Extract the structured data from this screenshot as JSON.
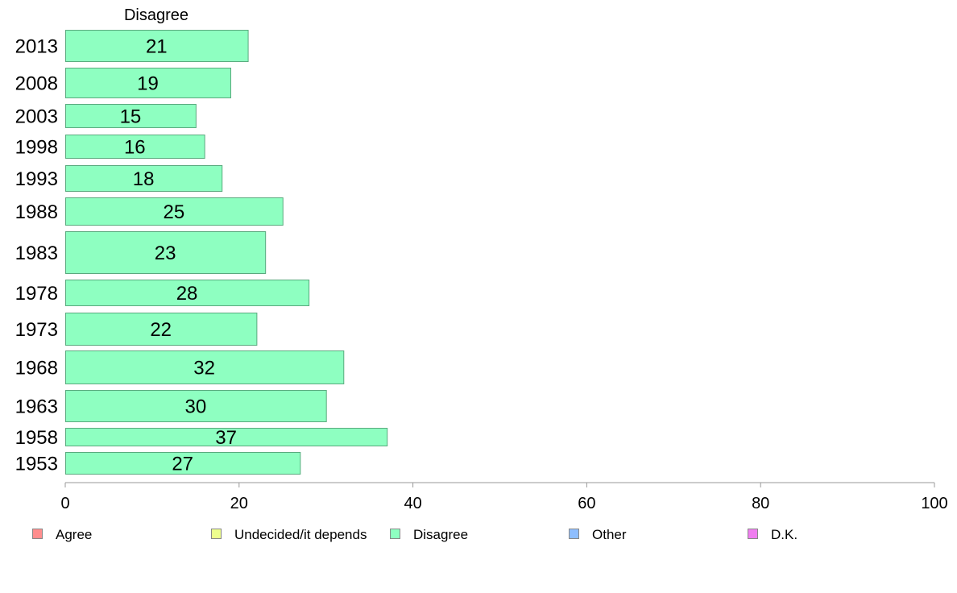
{
  "chart_data": {
    "type": "bar",
    "orientation": "horizontal",
    "panel_title": "Disagree",
    "categories": [
      "2013",
      "2008",
      "2003",
      "1998",
      "1993",
      "1988",
      "1983",
      "1978",
      "1973",
      "1968",
      "1963",
      "1958",
      "1953"
    ],
    "series": [
      {
        "name": "Disagree",
        "color": "#8effc1",
        "values": [
          21,
          19,
          15,
          16,
          18,
          25,
          23,
          28,
          22,
          32,
          30,
          37,
          27
        ],
        "bar_value_labels": [
          "21",
          "19",
          "15",
          "16",
          "18",
          "25",
          "23",
          "28",
          "22",
          "32",
          "30",
          "37",
          "27"
        ]
      }
    ],
    "xlim": [
      0,
      100
    ],
    "xticks": [
      0,
      20,
      40,
      60,
      80,
      100
    ],
    "xtick_labels": [
      "0",
      "20",
      "40",
      "60",
      "80",
      "100"
    ],
    "grid": false,
    "legend": {
      "placement": "bottom",
      "entries": [
        {
          "label": "Agree",
          "color": "#ff8e8e"
        },
        {
          "label": "Undecided/it depends",
          "color": "#eeff8e"
        },
        {
          "label": "Disagree",
          "color": "#8effc1"
        },
        {
          "label": "Other",
          "color": "#8ebeff"
        },
        {
          "label": "D.K.",
          "color": "#f07ef0"
        }
      ]
    },
    "bar_edge_color": "#5aaa7e",
    "axis_color": "#999999"
  }
}
